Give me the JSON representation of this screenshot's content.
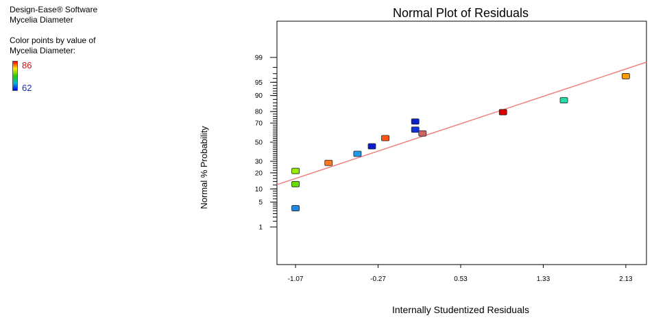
{
  "info": {
    "software": "Design-Ease® Software",
    "response": "Mycelia Diameter",
    "color_label_1": "Color points by value of",
    "color_label_2": "Mycelia Diameter:",
    "color_max": "86",
    "color_min": "62"
  },
  "colors": {
    "fit_line": "#f08080",
    "legend_high": "#ff0000",
    "legend_low": "#0000ff"
  },
  "chart_data": {
    "type": "scatter",
    "title": "Normal Plot of Residuals",
    "xlabel": "Internally Studentized Residuals",
    "ylabel": "Normal % Probability",
    "x_ticks": [
      -1.07,
      -0.27,
      0.53,
      1.33,
      2.13
    ],
    "x_tick_labels": [
      "-1.07",
      "-0.27",
      "0.53",
      "1.33",
      "2.13"
    ],
    "y_ticks": [
      1,
      5,
      10,
      20,
      30,
      50,
      70,
      80,
      90,
      95,
      99
    ],
    "y_tick_labels": [
      "1",
      "5",
      "10",
      "20",
      "30",
      "50",
      "70",
      "80",
      "90",
      "95",
      "99"
    ],
    "xlim": [
      -1.25,
      2.33
    ],
    "ylim_note": "normal probability scale",
    "points": [
      {
        "x": -1.07,
        "y": 3.5,
        "color": "#1e88e5"
      },
      {
        "x": -1.07,
        "y": 12.5,
        "color": "#66dd00"
      },
      {
        "x": -1.07,
        "y": 21.5,
        "color": "#99ee00"
      },
      {
        "x": -0.75,
        "y": 28.5,
        "color": "#ff7722"
      },
      {
        "x": -0.47,
        "y": 37.5,
        "color": "#1e9be8"
      },
      {
        "x": -0.33,
        "y": 45.5,
        "color": "#0a1ed0"
      },
      {
        "x": -0.2,
        "y": 54.5,
        "color": "#ff5511"
      },
      {
        "x": 0.09,
        "y": 63.5,
        "color": "#1133dd"
      },
      {
        "x": 0.09,
        "y": 71.5,
        "color": "#0a22cc"
      },
      {
        "x": 0.16,
        "y": 59.5,
        "color": "#cc6666"
      },
      {
        "x": 0.94,
        "y": 79.5,
        "color": "#dd0000"
      },
      {
        "x": 1.53,
        "y": 87.5,
        "color": "#22ddaa"
      },
      {
        "x": 2.13,
        "y": 96.5,
        "color": "#ff9900"
      }
    ],
    "fit_line": {
      "x": [
        -1.25,
        2.33
      ],
      "y": [
        12.2,
        98.6
      ]
    }
  }
}
